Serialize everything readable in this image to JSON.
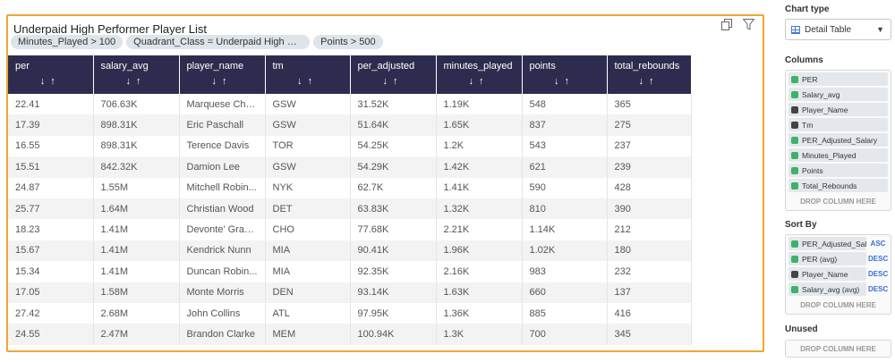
{
  "chart": {
    "title": "Underpaid High Performer Player List",
    "filters": [
      "Minutes_Played > 100",
      "Quadrant_Class = Underpaid High Perf...",
      "Points > 500"
    ]
  },
  "table": {
    "columns": [
      "per",
      "salary_avg",
      "player_name",
      "tm",
      "per_adjusted",
      "minutes_played",
      "points",
      "total_rebounds"
    ],
    "sort_glyphs": "↓↑",
    "rows": [
      [
        "22.41",
        "706.63K",
        "Marquese Chriss",
        "GSW",
        "31.52K",
        "1.19K",
        "548",
        "365"
      ],
      [
        "17.39",
        "898.31K",
        "Eric Paschall",
        "GSW",
        "51.64K",
        "1.65K",
        "837",
        "275"
      ],
      [
        "16.55",
        "898.31K",
        "Terence Davis",
        "TOR",
        "54.25K",
        "1.2K",
        "543",
        "237"
      ],
      [
        "15.51",
        "842.32K",
        "Damion Lee",
        "GSW",
        "54.29K",
        "1.42K",
        "621",
        "239"
      ],
      [
        "24.87",
        "1.55M",
        "Mitchell Robin...",
        "NYK",
        "62.7K",
        "1.41K",
        "590",
        "428"
      ],
      [
        "25.77",
        "1.64M",
        "Christian Wood",
        "DET",
        "63.83K",
        "1.32K",
        "810",
        "390"
      ],
      [
        "18.23",
        "1.41M",
        "Devonte' Grah...",
        "CHO",
        "77.68K",
        "2.21K",
        "1.14K",
        "212"
      ],
      [
        "15.67",
        "1.41M",
        "Kendrick Nunn",
        "MIA",
        "90.41K",
        "1.96K",
        "1.02K",
        "180"
      ],
      [
        "15.34",
        "1.41M",
        "Duncan Robin...",
        "MIA",
        "92.35K",
        "2.16K",
        "983",
        "232"
      ],
      [
        "17.05",
        "1.58M",
        "Monte Morris",
        "DEN",
        "93.14K",
        "1.63K",
        "660",
        "137"
      ],
      [
        "27.42",
        "2.68M",
        "John Collins",
        "ATL",
        "97.95K",
        "1.36K",
        "885",
        "416"
      ],
      [
        "24.55",
        "2.47M",
        "Brandon Clarke",
        "MEM",
        "100.94K",
        "1.3K",
        "700",
        "345"
      ]
    ]
  },
  "config": {
    "chart_type_title": "Chart type",
    "chart_type_value": "Detail Table",
    "columns_title": "Columns",
    "columns": [
      {
        "label": "PER",
        "kind": "num"
      },
      {
        "label": "Salary_avg",
        "kind": "num"
      },
      {
        "label": "Player_Name",
        "kind": "str"
      },
      {
        "label": "Tm",
        "kind": "str"
      },
      {
        "label": "PER_Adjusted_Salary",
        "kind": "num"
      },
      {
        "label": "Minutes_Played",
        "kind": "num"
      },
      {
        "label": "Points",
        "kind": "num"
      },
      {
        "label": "Total_Rebounds",
        "kind": "num"
      }
    ],
    "drop_label": "DROP COLUMN HERE",
    "sort_title": "Sort By",
    "sorts": [
      {
        "label": "PER_Adjusted_Salar",
        "dir": "ASC",
        "kind": "num"
      },
      {
        "label": "PER (avg)",
        "dir": "DESC",
        "kind": "num"
      },
      {
        "label": "Player_Name",
        "dir": "DESC",
        "kind": "str"
      },
      {
        "label": "Salary_avg (avg)",
        "dir": "DESC",
        "kind": "num"
      }
    ],
    "unused_title": "Unused",
    "colors": {
      "accent_border": "#f0a830",
      "header_bg": "#2e2c4e",
      "numeric_tag": "#3fb16a",
      "sort_dir": "#3a6fd0"
    }
  }
}
